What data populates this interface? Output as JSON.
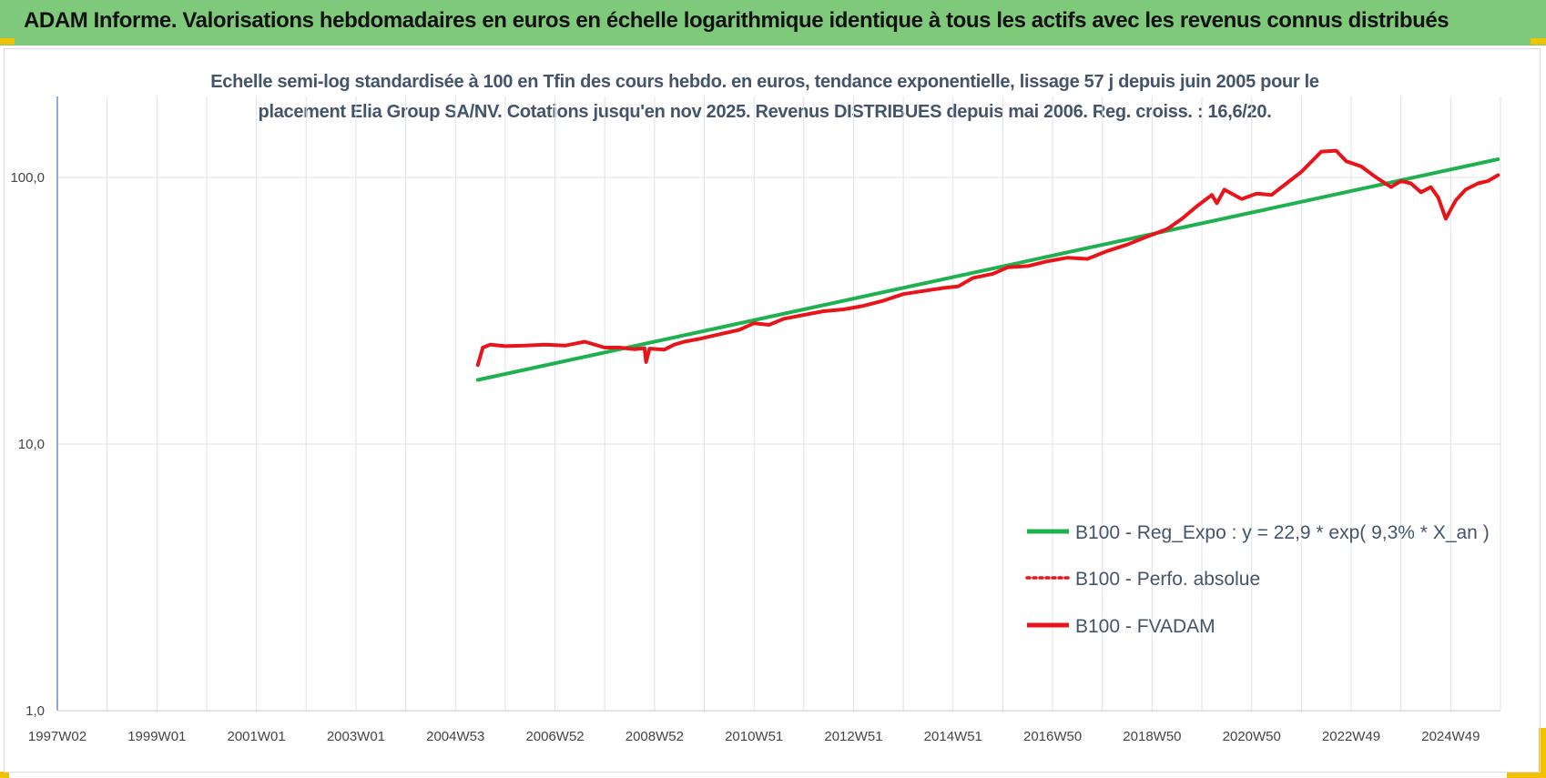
{
  "banner": {
    "title": "ADAM Informe. Valorisations hebdomadaires en euros en échelle logarithmique identique à tous les actifs avec les revenus connus distribués",
    "color": "#7fc97a"
  },
  "chart_data": {
    "type": "line",
    "title_line1": "Echelle semi-log standardisée à 100 en Tfin des cours hebdo. en euros, tendance exponentielle, lissage 57 j depuis juin 2005 pour le",
    "title_line2": "placement Elia Group SA/NV. Cotations jusqu'en nov 2025. Revenus DISTRIBUES depuis mai 2006. Reg. croiss. : 16,6/20.",
    "y_scale": "log",
    "ylim": [
      1,
      200
    ],
    "y_ticks": [
      1,
      10,
      100
    ],
    "y_tick_labels": [
      "1,0",
      "10,0",
      "100,0"
    ],
    "xlim": [
      1997.0,
      2026.0
    ],
    "x_ticks": [
      1997.0,
      1999.0,
      2001.0,
      2003.0,
      2005.0,
      2007.0,
      2009.0,
      2011.0,
      2013.0,
      2015.0,
      2017.0,
      2019.0,
      2021.0,
      2023.0,
      2025.0
    ],
    "x_tick_labels": [
      "1997W02",
      "1999W01",
      "2001W01",
      "2003W01",
      "2004W53",
      "2006W52",
      "2008W52",
      "2010W51",
      "2012W51",
      "2014W51",
      "2016W50",
      "2018W50",
      "2020W50",
      "2022W49",
      "2024W49"
    ],
    "grid": "vertical",
    "legend_position": "bottom-right",
    "series": [
      {
        "name": "B100 - Reg_Expo : y = 22,9 * exp( 9,3% *  X_an )",
        "color": "#1fb04f",
        "style": "solid",
        "x": [
          2005.45,
          2025.95
        ],
        "y": [
          17.4,
          117.0
        ]
      },
      {
        "name": "B100 - Perfo. absolue",
        "color": "#e8141a",
        "style": "dotted",
        "x": [],
        "y": []
      },
      {
        "name": "B100 - FVADAM",
        "color": "#e8141a",
        "style": "solid",
        "x": [
          2005.45,
          2005.55,
          2005.7,
          2006.0,
          2006.4,
          2006.8,
          2007.2,
          2007.6,
          2008.0,
          2008.3,
          2008.6,
          2008.8,
          2008.83,
          2008.9,
          2009.2,
          2009.4,
          2009.6,
          2009.9,
          2010.3,
          2010.7,
          2011.0,
          2011.3,
          2011.6,
          2012.0,
          2012.4,
          2012.8,
          2013.2,
          2013.6,
          2014.0,
          2014.4,
          2014.8,
          2015.1,
          2015.4,
          2015.8,
          2016.1,
          2016.5,
          2016.9,
          2017.3,
          2017.7,
          2018.1,
          2018.5,
          2018.9,
          2019.3,
          2019.6,
          2019.9,
          2020.2,
          2020.3,
          2020.45,
          2020.8,
          2021.1,
          2021.4,
          2021.7,
          2022.0,
          2022.4,
          2022.7,
          2022.9,
          2023.2,
          2023.5,
          2023.8,
          2024.0,
          2024.2,
          2024.4,
          2024.6,
          2024.75,
          2024.9,
          2025.1,
          2025.3,
          2025.55,
          2025.75,
          2025.95
        ],
        "y": [
          19.8,
          23.0,
          23.6,
          23.3,
          23.4,
          23.6,
          23.4,
          24.2,
          23.0,
          23.0,
          22.7,
          22.9,
          20.3,
          22.8,
          22.6,
          23.6,
          24.2,
          24.8,
          25.8,
          26.8,
          28.4,
          28.0,
          29.5,
          30.5,
          31.5,
          32.0,
          33.0,
          34.5,
          36.5,
          37.5,
          38.5,
          39.0,
          42.0,
          43.5,
          46.0,
          46.5,
          48.5,
          50.0,
          49.5,
          53.0,
          56.0,
          60.0,
          64.0,
          70.0,
          78.0,
          86.0,
          80.0,
          90.0,
          83.0,
          87.0,
          86.0,
          95.0,
          105.0,
          125.0,
          126.0,
          115.0,
          110.0,
          100.0,
          92.0,
          97.0,
          95.0,
          88.0,
          92.0,
          84.0,
          70.0,
          82.0,
          90.0,
          95.0,
          97.0,
          102.0
        ]
      }
    ]
  }
}
